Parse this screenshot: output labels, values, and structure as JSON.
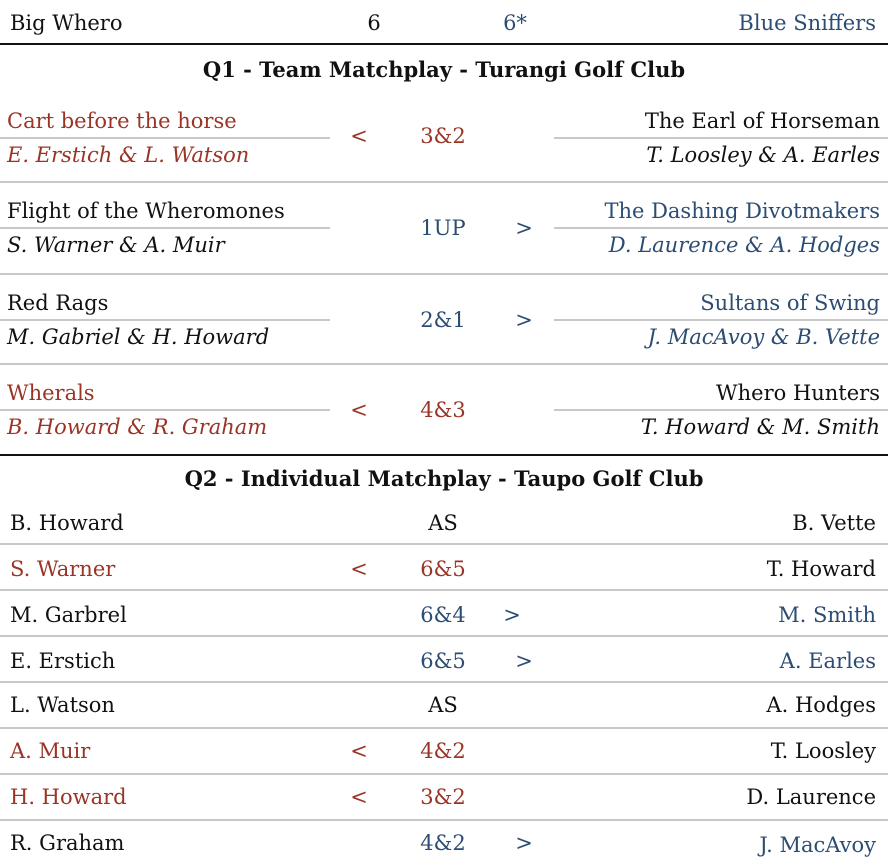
{
  "score": {
    "team_a": "Big Whero",
    "team_a_score": "6",
    "team_b_score": "6*",
    "team_b": "Blue Sniffers"
  },
  "q1": {
    "title": "Q1 - Team Matchplay - Turangi Golf Club",
    "matches": [
      {
        "left_team": "Cart before the horse",
        "left_players": "E. Erstich & L. Watson",
        "arrow": "<",
        "result": "3&2",
        "right_team": "The Earl of Horseman",
        "right_players": "T. Loosley & A. Earles",
        "winner": "left"
      },
      {
        "left_team": "Flight of the Wheromones",
        "left_players": "S. Warner & A. Muir",
        "arrow": ">",
        "result": "1UP",
        "right_team": "The Dashing Divotmakers",
        "right_players": "D. Laurence & A. Hodges",
        "winner": "right"
      },
      {
        "left_team": "Red Rags",
        "left_players": "M. Gabriel & H. Howard",
        "arrow": ">",
        "result": "2&1",
        "right_team": "Sultans of Swing",
        "right_players": "J. MacAvoy & B. Vette",
        "winner": "right"
      },
      {
        "left_team": "Wherals",
        "left_players": "B. Howard & R. Graham",
        "arrow": "<",
        "result": "4&3",
        "right_team": "Whero Hunters",
        "right_players": "T. Howard & M. Smith",
        "winner": "left"
      }
    ]
  },
  "q2": {
    "title": "Q2 - Individual  Matchplay - Taupo Golf Club",
    "matches": [
      {
        "left": "B. Howard",
        "arrow": "",
        "result": "AS",
        "right": "B. Vette",
        "winner": "none"
      },
      {
        "left": "S. Warner",
        "arrow": "<",
        "result": "6&5",
        "right": "T. Howard",
        "winner": "left"
      },
      {
        "left": "M. Garbrel",
        "arrow": ">",
        "result": "6&4",
        "right": "M. Smith",
        "winner": "right"
      },
      {
        "left": "E. Erstich",
        "arrow": ">",
        "result": "6&5",
        "right": "A. Earles",
        "winner": "right"
      },
      {
        "left": "L. Watson",
        "arrow": "",
        "result": "AS",
        "right": "A. Hodges",
        "winner": "none"
      },
      {
        "left": "A. Muir",
        "arrow": "<",
        "result": "4&2",
        "right": "T. Loosley",
        "winner": "left"
      },
      {
        "left": "H. Howard",
        "arrow": "<",
        "result": "3&2",
        "right": "D. Laurence",
        "winner": "left"
      },
      {
        "left": "R. Graham",
        "arrow": ">",
        "result": "4&2",
        "right": "J. MacAvoy",
        "winner": "right"
      }
    ]
  },
  "colors": {
    "left_win": "#9a3426",
    "right_win": "#2c4d73",
    "neutral": "#111111"
  }
}
